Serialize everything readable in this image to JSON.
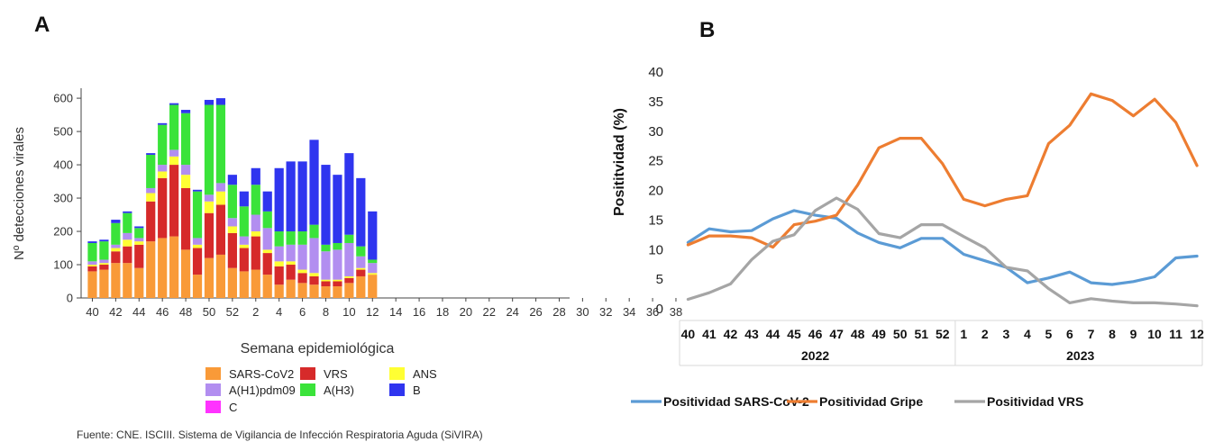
{
  "panels": {
    "a": {
      "letter": "A"
    },
    "b": {
      "letter": "B"
    }
  },
  "colors": {
    "SARS-CoV2": "#f99a38",
    "VRS": "#d62a2a",
    "ANS": "#ffff33",
    "A(H1)pdm09": "#b28ef0",
    "A(H3)": "#3ae33a",
    "B": "#2f35ef",
    "C": "#ff33ff",
    "line_sars": "#5b9bd5",
    "line_gripe": "#ed7d31",
    "line_vrs": "#a5a5a5"
  },
  "chart_data": [
    {
      "id": "A",
      "type": "bar",
      "stacked": true,
      "xlabel": "Semana epidemiológica",
      "ylabel": "Nº detecciones virales",
      "ylim": [
        0,
        630
      ],
      "yticks": [
        0,
        100,
        200,
        300,
        400,
        500,
        600
      ],
      "x_tick_labels": [
        "40",
        "42",
        "44",
        "46",
        "48",
        "50",
        "52",
        "2",
        "4",
        "6",
        "8",
        "10",
        "12",
        "14",
        "16",
        "18",
        "20",
        "22",
        "24",
        "26",
        "28",
        "30",
        "32",
        "34",
        "36",
        "38"
      ],
      "weeks": [
        "40",
        "41",
        "42",
        "43",
        "44",
        "45",
        "46",
        "47",
        "48",
        "49",
        "50",
        "51",
        "52",
        "1",
        "2",
        "3",
        "4",
        "5",
        "6",
        "7",
        "8",
        "9",
        "10",
        "11",
        "12"
      ],
      "series": [
        {
          "name": "SARS-CoV2",
          "values": [
            80,
            85,
            105,
            105,
            90,
            170,
            180,
            185,
            145,
            70,
            120,
            130,
            90,
            80,
            85,
            70,
            40,
            55,
            45,
            40,
            35,
            35,
            45,
            65,
            70
          ]
        },
        {
          "name": "VRS",
          "values": [
            15,
            15,
            35,
            50,
            70,
            120,
            180,
            215,
            185,
            80,
            135,
            150,
            105,
            70,
            100,
            65,
            55,
            45,
            30,
            25,
            15,
            15,
            15,
            20,
            0
          ]
        },
        {
          "name": "ANS",
          "values": [
            5,
            5,
            10,
            20,
            10,
            25,
            20,
            25,
            40,
            10,
            35,
            40,
            20,
            10,
            15,
            10,
            15,
            10,
            10,
            10,
            5,
            5,
            5,
            5,
            5
          ]
        },
        {
          "name": "A(H1)pdm09",
          "values": [
            10,
            10,
            10,
            20,
            10,
            15,
            20,
            20,
            30,
            20,
            20,
            25,
            25,
            25,
            50,
            65,
            45,
            50,
            75,
            105,
            85,
            90,
            100,
            35,
            30
          ]
        },
        {
          "name": "A(H3)",
          "values": [
            55,
            55,
            65,
            60,
            30,
            100,
            120,
            135,
            155,
            140,
            270,
            235,
            100,
            90,
            90,
            50,
            45,
            40,
            40,
            40,
            20,
            20,
            25,
            30,
            10
          ]
        },
        {
          "name": "B",
          "values": [
            5,
            5,
            10,
            5,
            5,
            5,
            5,
            5,
            10,
            5,
            15,
            20,
            30,
            45,
            50,
            60,
            190,
            210,
            210,
            255,
            240,
            205,
            245,
            205,
            145
          ]
        },
        {
          "name": "C",
          "values": [
            0,
            0,
            0,
            0,
            0,
            0,
            0,
            0,
            0,
            0,
            0,
            0,
            0,
            0,
            0,
            0,
            0,
            0,
            0,
            0,
            0,
            0,
            0,
            0,
            0
          ]
        }
      ],
      "legend": [
        "SARS-CoV2",
        "VRS",
        "ANS",
        "A(H1)pdm09",
        "A(H3)",
        "B",
        "C"
      ],
      "source": "Fuente: CNE. ISCIII. Sistema de Vigilancia de Infección Respiratoria Aguda (SiVIRA)"
    },
    {
      "id": "B",
      "type": "line",
      "ylabel": "Posititvidad (%)",
      "ylim": [
        0,
        40
      ],
      "yticks": [
        0,
        5,
        10,
        15,
        20,
        25,
        30,
        35,
        40
      ],
      "categories": [
        "40",
        "41",
        "42",
        "43",
        "44",
        "45",
        "46",
        "47",
        "48",
        "49",
        "50",
        "51",
        "52",
        "1",
        "2",
        "3",
        "4",
        "5",
        "6",
        "7",
        "8",
        "9",
        "10",
        "11",
        "12"
      ],
      "years": [
        {
          "label": "2022",
          "count": 13
        },
        {
          "label": "2023",
          "count": 12
        }
      ],
      "series": [
        {
          "name": "Positividad SARS-CoV-2",
          "values": [
            11.2,
            13.5,
            13,
            13.2,
            15.2,
            16.6,
            15.8,
            15.3,
            12.8,
            11.2,
            10.3,
            11.9,
            11.9,
            9.2,
            8.1,
            7,
            4.4,
            5.2,
            6.2,
            4.4,
            4.1,
            4.6,
            5.4,
            8.6,
            8.9
          ]
        },
        {
          "name": "Positividad Gripe",
          "values": [
            10.8,
            12.3,
            12.3,
            12,
            10.4,
            14.2,
            14.8,
            15.8,
            20.9,
            27.2,
            28.8,
            28.8,
            24.5,
            18.5,
            17.4,
            18.5,
            19.1,
            27.9,
            31,
            36.3,
            35.2,
            32.6,
            35.4,
            31.5,
            24.2
          ]
        },
        {
          "name": "Positividad VRS",
          "values": [
            1.6,
            2.7,
            4.2,
            8.3,
            11.4,
            12.5,
            16.6,
            18.7,
            16.8,
            12.7,
            12,
            14.2,
            14.2,
            12.2,
            10.3,
            7,
            6.4,
            3.4,
            1,
            1.7,
            1.3,
            1,
            1,
            0.8,
            0.5
          ]
        }
      ]
    }
  ]
}
